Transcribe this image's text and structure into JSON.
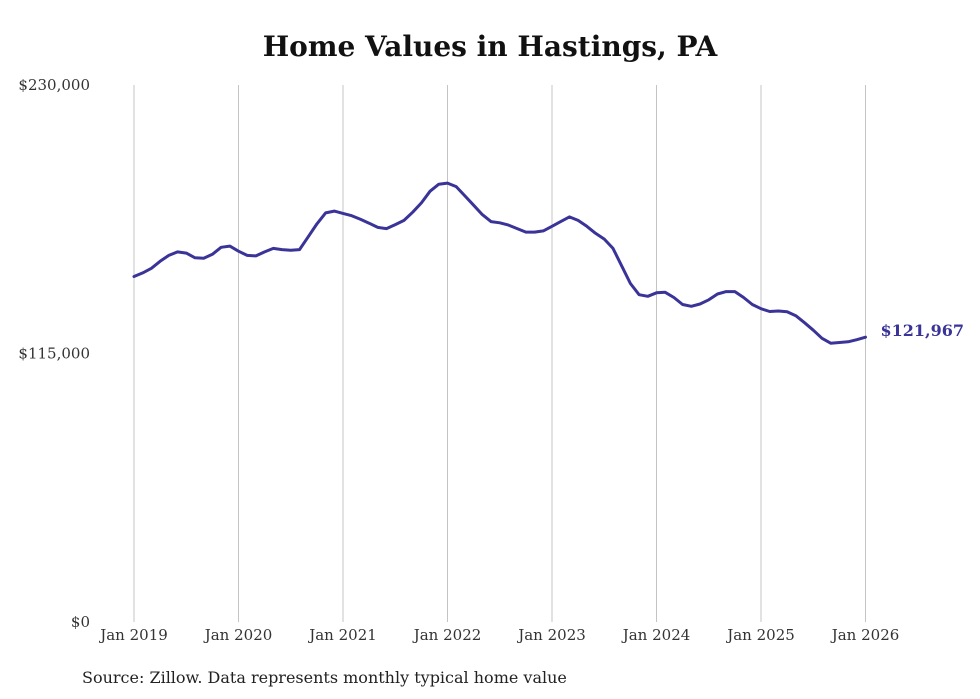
{
  "chart_data": {
    "type": "line",
    "title": "Home Values in Hastings, PA",
    "source": "Source: Zillow. Data represents monthly typical home value",
    "xlabel": "",
    "ylabel": "",
    "ylim": [
      0,
      230000
    ],
    "yticks": [
      {
        "value": 0,
        "label": "$0"
      },
      {
        "value": 115000,
        "label": "$115,000"
      },
      {
        "value": 230000,
        "label": "$230,000"
      }
    ],
    "xticks": [
      {
        "year": 2019,
        "label": "Jan 2019"
      },
      {
        "year": 2020,
        "label": "Jan 2020"
      },
      {
        "year": 2021,
        "label": "Jan 2021"
      },
      {
        "year": 2022,
        "label": "Jan 2022"
      },
      {
        "year": 2023,
        "label": "Jan 2023"
      },
      {
        "year": 2024,
        "label": "Jan 2024"
      },
      {
        "year": 2025,
        "label": "Jan 2025"
      },
      {
        "year": 2026,
        "label": "Jan 2026"
      }
    ],
    "grid": true,
    "line_color": "#3a3398",
    "start": {
      "year": 2019,
      "month": 1
    },
    "series": [
      {
        "name": "Typical home value",
        "values": [
          148000,
          149500,
          151500,
          154500,
          157000,
          158500,
          158000,
          156000,
          155800,
          157500,
          160500,
          161000,
          158800,
          157000,
          156800,
          158500,
          160000,
          159500,
          159200,
          159500,
          165000,
          170500,
          175200,
          176000,
          175000,
          174000,
          172500,
          170800,
          169000,
          168500,
          170200,
          172000,
          175500,
          179500,
          184500,
          187500,
          188000,
          186500,
          182500,
          178500,
          174500,
          171500,
          171000,
          170000,
          168500,
          167000,
          167000,
          167500,
          169500,
          171500,
          173500,
          172000,
          169500,
          166500,
          164000,
          160000,
          152500,
          145000,
          140200,
          139500,
          141000,
          141200,
          139000,
          136000,
          135200,
          136200,
          138000,
          140500,
          141500,
          141500,
          139000,
          136000,
          134200,
          133000,
          133200,
          132900,
          131200,
          128200,
          125000,
          121500,
          119400,
          119700,
          120000,
          120900,
          121967
        ]
      }
    ],
    "end_label": "$121,967"
  }
}
